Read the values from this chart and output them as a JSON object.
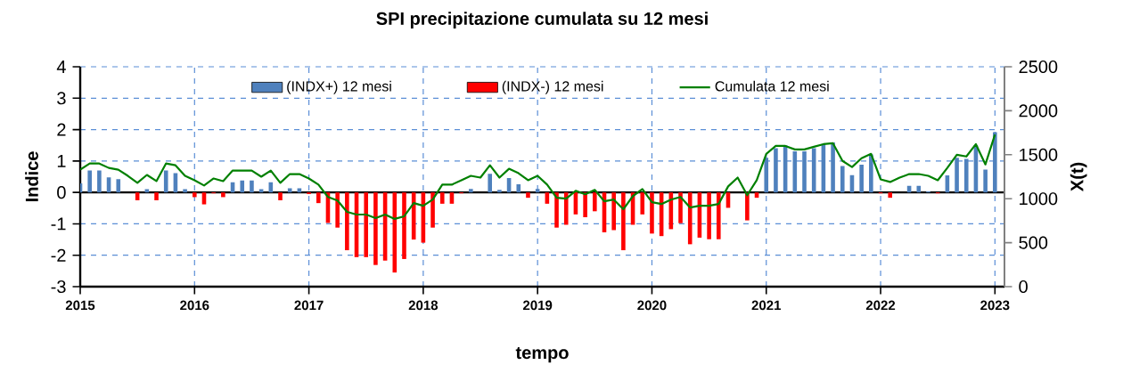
{
  "chart_data": {
    "type": "bar",
    "title": "SPI precipitazione cumulata su 12 mesi",
    "xlabel": "tempo",
    "ylabel": "Indice",
    "y2label": "X(t)",
    "x": [
      "2015-01",
      "2015-02",
      "2015-03",
      "2015-04",
      "2015-05",
      "2015-06",
      "2015-07",
      "2015-08",
      "2015-09",
      "2015-10",
      "2015-11",
      "2015-12",
      "2016-01",
      "2016-02",
      "2016-03",
      "2016-04",
      "2016-05",
      "2016-06",
      "2016-07",
      "2016-08",
      "2016-09",
      "2016-10",
      "2016-11",
      "2016-12",
      "2017-01",
      "2017-02",
      "2017-03",
      "2017-04",
      "2017-05",
      "2017-06",
      "2017-07",
      "2017-08",
      "2017-09",
      "2017-10",
      "2017-11",
      "2017-12",
      "2018-01",
      "2018-02",
      "2018-03",
      "2018-04",
      "2018-05",
      "2018-06",
      "2018-07",
      "2018-08",
      "2018-09",
      "2018-10",
      "2018-11",
      "2018-12",
      "2019-01",
      "2019-02",
      "2019-03",
      "2019-04",
      "2019-05",
      "2019-06",
      "2019-07",
      "2019-08",
      "2019-09",
      "2019-10",
      "2019-11",
      "2019-12",
      "2020-01",
      "2020-02",
      "2020-03",
      "2020-04",
      "2020-05",
      "2020-06",
      "2020-07",
      "2020-08",
      "2020-09",
      "2020-10",
      "2020-11",
      "2020-12",
      "2021-01",
      "2021-02",
      "2021-03",
      "2021-04",
      "2021-05",
      "2021-06",
      "2021-07",
      "2021-08",
      "2021-09",
      "2021-10",
      "2021-11",
      "2021-12",
      "2022-01",
      "2022-02",
      "2022-03",
      "2022-04",
      "2022-05",
      "2022-06",
      "2022-07",
      "2022-08",
      "2022-09",
      "2022-10",
      "2022-11",
      "2022-12",
      "2023-01"
    ],
    "series": [
      {
        "name": "(INDX+) 12 mesi",
        "color": "#4f81bd",
        "values": [
          0.29,
          0.7,
          0.7,
          0.48,
          0.42,
          null,
          null,
          0.1,
          null,
          0.7,
          0.61,
          0.1,
          null,
          null,
          null,
          null,
          0.32,
          0.38,
          0.38,
          0.1,
          0.32,
          null,
          0.13,
          0.13,
          null,
          null,
          null,
          null,
          null,
          null,
          null,
          null,
          null,
          null,
          null,
          null,
          null,
          null,
          null,
          null,
          null,
          0.11,
          null,
          0.59,
          0.08,
          0.46,
          0.26,
          null,
          0.11,
          null,
          null,
          null,
          null,
          null,
          null,
          null,
          null,
          null,
          null,
          null,
          null,
          null,
          null,
          null,
          null,
          null,
          null,
          null,
          null,
          null,
          null,
          null,
          1.1,
          1.41,
          1.5,
          1.31,
          1.31,
          1.41,
          1.54,
          1.59,
          0.84,
          0.55,
          0.88,
          1.21,
          null,
          null,
          null,
          0.21,
          0.21,
          0.03,
          null,
          0.54,
          1.1,
          1.07,
          1.5,
          0.73,
          1.92
        ]
      },
      {
        "name": "(INDX-) 12 mesi",
        "color": "#ff0000",
        "values": [
          null,
          null,
          null,
          null,
          null,
          null,
          -0.25,
          null,
          -0.25,
          null,
          null,
          null,
          -0.15,
          -0.38,
          -0.03,
          -0.15,
          null,
          null,
          null,
          null,
          null,
          -0.25,
          null,
          null,
          -0.05,
          -0.34,
          -0.97,
          -1.12,
          -1.84,
          -2.06,
          -2.06,
          -2.31,
          -2.17,
          -2.55,
          -2.12,
          -1.5,
          -1.6,
          -1.12,
          -0.36,
          -0.36,
          -0.03,
          null,
          null,
          null,
          null,
          null,
          null,
          -0.17,
          null,
          -0.36,
          -1.12,
          -1.03,
          -0.7,
          -0.79,
          -0.6,
          -1.27,
          -1.2,
          -1.84,
          -1.03,
          -0.7,
          -1.31,
          -1.39,
          -1.17,
          -0.98,
          -1.65,
          -1.44,
          -1.49,
          -1.49,
          -0.49,
          null,
          -0.89,
          -0.17,
          null,
          null,
          null,
          null,
          null,
          null,
          null,
          null,
          null,
          null,
          null,
          null,
          -0.03,
          -0.17,
          null,
          null,
          null,
          null,
          -0.03,
          null,
          null,
          null,
          null,
          null,
          null
        ]
      },
      {
        "name": "Cumulata 12 mesi",
        "type": "line",
        "axis": "y2",
        "color": "#008000",
        "values": [
          1330,
          1400,
          1400,
          1350,
          1330,
          1260,
          1180,
          1270,
          1200,
          1400,
          1380,
          1260,
          1210,
          1150,
          1230,
          1200,
          1320,
          1320,
          1320,
          1250,
          1320,
          1180,
          1280,
          1280,
          1230,
          1160,
          1020,
          980,
          850,
          820,
          820,
          780,
          820,
          770,
          800,
          950,
          920,
          990,
          1160,
          1160,
          1210,
          1260,
          1240,
          1380,
          1240,
          1340,
          1290,
          1210,
          1260,
          1160,
          1010,
          1000,
          1090,
          1050,
          1100,
          970,
          990,
          880,
          1030,
          1110,
          960,
          940,
          990,
          1020,
          900,
          920,
          920,
          940,
          1140,
          1240,
          1040,
          1210,
          1510,
          1600,
          1600,
          1560,
          1560,
          1590,
          1620,
          1630,
          1430,
          1360,
          1460,
          1510,
          1220,
          1190,
          1240,
          1280,
          1280,
          1260,
          1210,
          1350,
          1500,
          1480,
          1620,
          1390,
          1730
        ]
      }
    ],
    "xlim": [
      "2015-01",
      "2023-02"
    ],
    "xticks": [
      "2015",
      "2016",
      "2017",
      "2018",
      "2019",
      "2020",
      "2021",
      "2022",
      "2023"
    ],
    "ylim": [
      -3,
      4
    ],
    "yticks": [
      -3,
      -2,
      -1,
      0,
      1,
      2,
      3,
      4
    ],
    "y2lim": [
      0,
      2500
    ],
    "y2ticks": [
      0,
      500,
      1000,
      1500,
      2000,
      2500
    ],
    "ref_lines": [
      {
        "axis": "y",
        "value": 0,
        "color": "#000000"
      }
    ],
    "grid": true,
    "legend": "top"
  }
}
